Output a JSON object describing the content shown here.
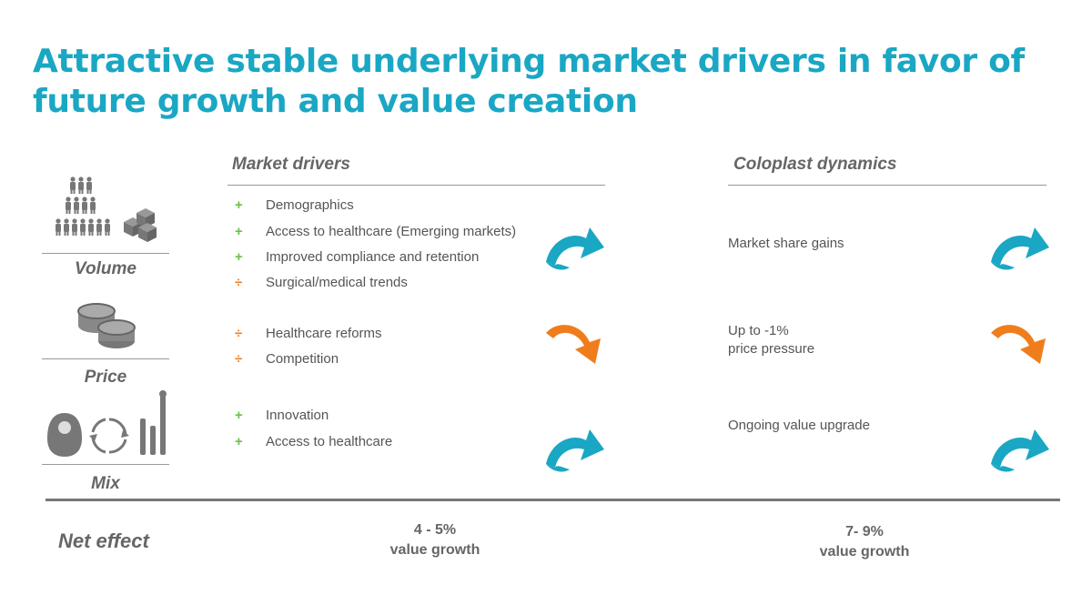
{
  "title": "Attractive stable underlying market drivers in favor of future growth and value creation",
  "headers": {
    "market": "Market drivers",
    "coloplast": "Coloplast dynamics"
  },
  "rows": {
    "volume": {
      "label": "Volume",
      "drivers": [
        {
          "sign": "+",
          "text": "Demographics"
        },
        {
          "sign": "+",
          "text": "Access to healthcare (Emerging markets)"
        },
        {
          "sign": "+",
          "text": "Improved compliance and retention"
        },
        {
          "sign": "÷",
          "text": "Surgical/medical trends"
        }
      ],
      "dynamics": [
        "Market share gains"
      ]
    },
    "price": {
      "label": "Price",
      "drivers": [
        {
          "sign": "÷",
          "text": "Healthcare reforms"
        },
        {
          "sign": "÷",
          "text": "Competition"
        }
      ],
      "dynamics": [
        "Up to -1%",
        "price pressure"
      ]
    },
    "mix": {
      "label": "Mix",
      "drivers": [
        {
          "sign": "+",
          "text": "Innovation"
        },
        {
          "sign": "+",
          "text": "Access to healthcare"
        }
      ],
      "dynamics": [
        "Ongoing value upgrade"
      ]
    }
  },
  "net_effect": {
    "label": "Net effect",
    "market": [
      "4 - 5%",
      "value growth"
    ],
    "coloplast": [
      "7- 9%",
      "value growth"
    ]
  },
  "icons": {
    "volume": [
      "people-pyramid-icon",
      "boxes-icon"
    ],
    "price": "coins-icon",
    "mix": [
      "ostomy-bag-icon",
      "cycle-arrows-icon",
      "catheter-icon"
    ],
    "up_arrow": "curved-up-arrow-icon",
    "down_arrow": "curved-down-arrow-icon"
  },
  "colors": {
    "teal": "#1aa7c4",
    "orange": "#f07d1c",
    "plus_green": "#6cc04a",
    "gray": "#555555"
  }
}
